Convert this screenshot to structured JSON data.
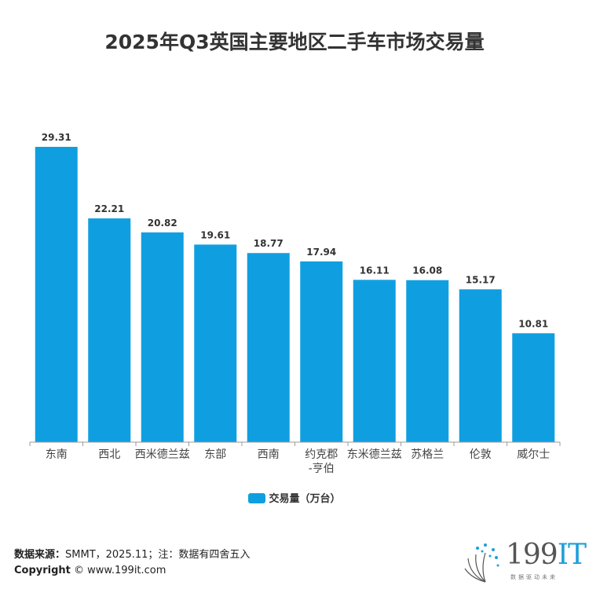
{
  "chart_data": {
    "type": "bar",
    "title": "2025年Q3英国主要地区二手车市场交易量",
    "categories": [
      "东南",
      "西北",
      "西米德兰兹",
      "东部",
      "西南",
      "约克郡-亨伯",
      "东米德兰兹",
      "苏格兰",
      "伦敦",
      "威尔士"
    ],
    "category_lines": [
      [
        "东南"
      ],
      [
        "西北"
      ],
      [
        "西米德兰兹"
      ],
      [
        "东部"
      ],
      [
        "西南"
      ],
      [
        "约克郡",
        "-亨伯"
      ],
      [
        "东米德兰兹"
      ],
      [
        "苏格兰"
      ],
      [
        "伦敦"
      ],
      [
        "威尔士"
      ]
    ],
    "series": [
      {
        "name": "交易量（万台）",
        "values": [
          29.31,
          22.21,
          20.82,
          19.61,
          18.77,
          17.94,
          16.11,
          16.08,
          15.17,
          10.81
        ],
        "color": "#0f9fe1"
      }
    ],
    "ylim": [
      0,
      29.31
    ],
    "grid": false,
    "legend_position": "bottom",
    "data_labels": true
  },
  "footer": {
    "source_label": "数据来源：",
    "source_text": "SMMT，2025.11；注：数据有四舍五入",
    "copyright_label": "Copyright",
    "copyright_text": " © www.199it.com"
  },
  "logo": {
    "name": "199IT",
    "tagline": "数据驱动未来"
  }
}
